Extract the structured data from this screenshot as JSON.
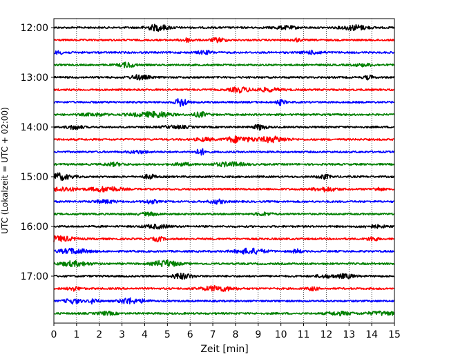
{
  "chart_data": {
    "type": "line",
    "subtype": "seismogram-helicorder",
    "xlabel": "Zeit  [min]",
    "ylabel": "UTC (Lokalzeit = UTC + 02:00)",
    "xlim": [
      0,
      15
    ],
    "x_ticks": [
      "0",
      "1",
      "2",
      "3",
      "4",
      "5",
      "6",
      "7",
      "8",
      "9",
      "10",
      "11",
      "12",
      "13",
      "14",
      "15"
    ],
    "y_ticks": [
      "12:00",
      "13:00",
      "14:00",
      "15:00",
      "16:00",
      "17:00"
    ],
    "grid": "vertical-dotted",
    "trace_interval_minutes": 15,
    "colors": [
      "#000000",
      "#ff0000",
      "#0000ff",
      "#008000"
    ],
    "traces": [
      {
        "start": "12:00",
        "color": "#000000"
      },
      {
        "start": "12:15",
        "color": "#ff0000"
      },
      {
        "start": "12:30",
        "color": "#0000ff"
      },
      {
        "start": "12:45",
        "color": "#008000"
      },
      {
        "start": "13:00",
        "color": "#000000"
      },
      {
        "start": "13:15",
        "color": "#ff0000"
      },
      {
        "start": "13:30",
        "color": "#0000ff"
      },
      {
        "start": "13:45",
        "color": "#008000"
      },
      {
        "start": "14:00",
        "color": "#000000"
      },
      {
        "start": "14:15",
        "color": "#ff0000"
      },
      {
        "start": "14:30",
        "color": "#0000ff"
      },
      {
        "start": "14:45",
        "color": "#008000"
      },
      {
        "start": "15:00",
        "color": "#000000"
      },
      {
        "start": "15:15",
        "color": "#ff0000"
      },
      {
        "start": "15:30",
        "color": "#0000ff"
      },
      {
        "start": "15:45",
        "color": "#008000"
      },
      {
        "start": "16:00",
        "color": "#000000"
      },
      {
        "start": "16:15",
        "color": "#ff0000"
      },
      {
        "start": "16:30",
        "color": "#0000ff"
      },
      {
        "start": "16:45",
        "color": "#008000"
      },
      {
        "start": "17:00",
        "color": "#000000"
      },
      {
        "start": "17:15",
        "color": "#ff0000"
      },
      {
        "start": "17:30",
        "color": "#0000ff"
      },
      {
        "start": "17:45",
        "color": "#008000"
      }
    ]
  }
}
